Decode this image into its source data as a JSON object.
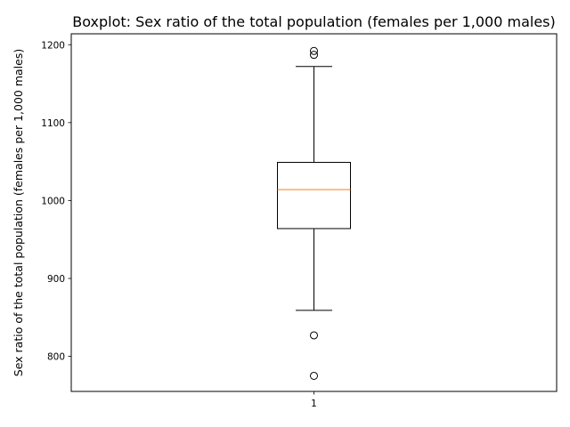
{
  "chart_data": {
    "type": "boxplot",
    "title": "Boxplot: Sex ratio of the total population (females per 1,000 males)",
    "xlabel": "",
    "ylabel": "Sex ratio of the total population (females per 1,000 males)",
    "categories": [
      "1"
    ],
    "ylim": [
      755,
      1214
    ],
    "yticks": [
      800,
      900,
      1000,
      1100,
      1200
    ],
    "grid": false,
    "boxes": [
      {
        "category": "1",
        "whisker_low": 859,
        "q1": 964,
        "median": 1014,
        "q3": 1049,
        "whisker_high": 1172,
        "outliers": [
          775,
          827,
          1187,
          1192
        ]
      }
    ],
    "colors": {
      "box": "#000000",
      "median": "#ff7f0e"
    }
  }
}
